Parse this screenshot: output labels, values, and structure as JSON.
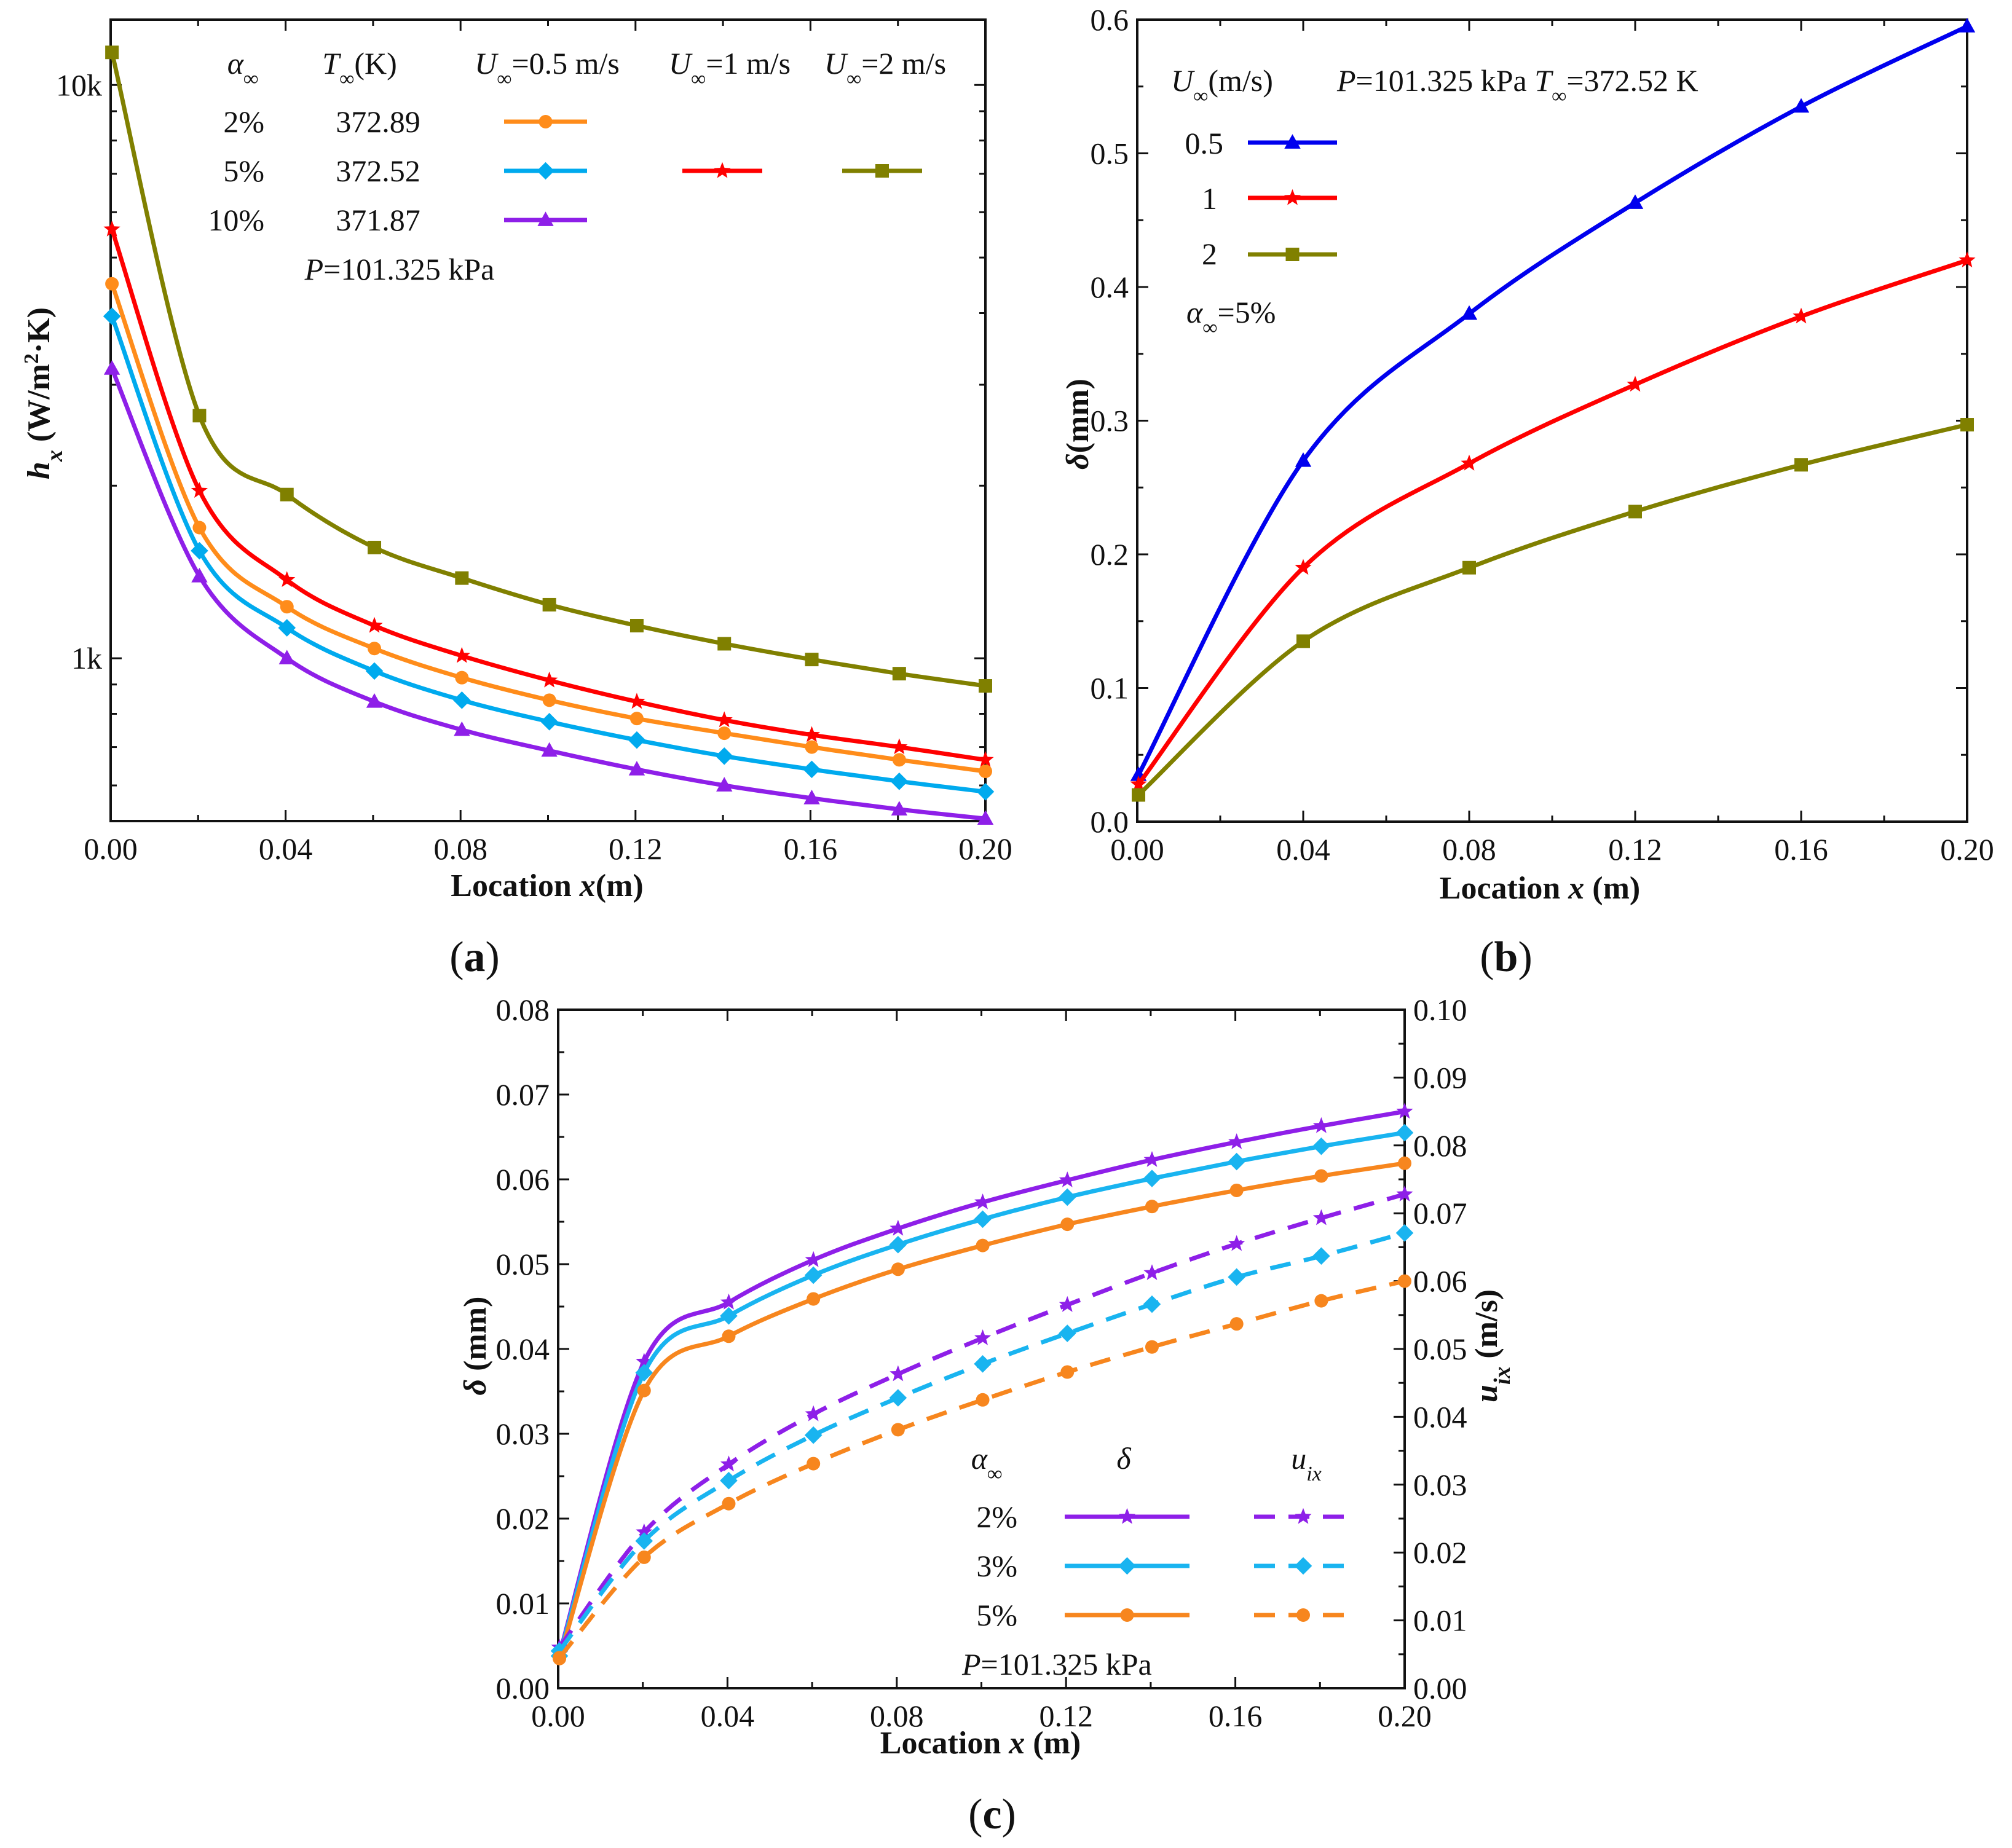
{
  "figure": {
    "panel_labels": {
      "a": "(a)",
      "b": "(b)",
      "c": "(c)"
    }
  },
  "chart_data": [
    {
      "id": "a",
      "type": "line",
      "xscale": "linear",
      "yscale": "log",
      "xlabel": "Location x(m)",
      "ylabel": "h_x (W/m²·K)",
      "xlim": [
        0.0,
        0.2
      ],
      "ylim": [
        520,
        13000
      ],
      "xticks": [
        0.0,
        0.04,
        0.08,
        0.12,
        0.16,
        0.2
      ],
      "xtick_labels": [
        "0.00",
        "0.04",
        "0.08",
        "0.12",
        "0.16",
        "0.20"
      ],
      "yticks": [
        1000,
        10000
      ],
      "ytick_labels": [
        "1k",
        "10k"
      ],
      "legend": {
        "header": [
          "α∞",
          "T∞(K)",
          "U∞=0.5 m/s",
          "U∞=1 m/s",
          "U∞=2 m/s"
        ],
        "rows": [
          {
            "alpha": "2%",
            "T": "372.89"
          },
          {
            "alpha": "5%",
            "T": "372.52"
          },
          {
            "alpha": "10%",
            "T": "371.87"
          }
        ],
        "note": "P=101.325 kPa"
      },
      "x": [
        0.0003,
        0.0203,
        0.0403,
        0.0603,
        0.0803,
        0.1003,
        0.1203,
        0.1403,
        0.1603,
        0.1803,
        0.2
      ],
      "series": [
        {
          "name": "U∞=2 m/s, α∞=5%",
          "color": "#808000",
          "marker": "square",
          "dash": "solid",
          "values": [
            11400,
            2650,
            1930,
            1560,
            1380,
            1240,
            1140,
            1060,
            995,
            940,
            895
          ]
        },
        {
          "name": "U∞=1 m/s, α∞=5%",
          "color": "#ff0000",
          "marker": "star",
          "dash": "solid",
          "values": [
            5600,
            1960,
            1370,
            1140,
            1010,
            915,
            840,
            780,
            735,
            700,
            665
          ]
        },
        {
          "name": "U∞=0.5 m/s, α∞=2%",
          "color": "#ff8c1a",
          "marker": "circle",
          "dash": "solid",
          "values": [
            4500,
            1690,
            1230,
            1040,
            925,
            845,
            785,
            740,
            700,
            665,
            635
          ]
        },
        {
          "name": "U∞=0.5 m/s, α∞=5%",
          "color": "#00aaee",
          "marker": "diamond",
          "dash": "solid",
          "values": [
            3950,
            1540,
            1130,
            950,
            845,
            775,
            720,
            675,
            640,
            610,
            585
          ]
        },
        {
          "name": "U∞=0.5 m/s, α∞=10%",
          "color": "#8e1fe8",
          "marker": "triangle",
          "dash": "solid",
          "values": [
            3200,
            1390,
            1000,
            840,
            750,
            690,
            640,
            600,
            570,
            545,
            525
          ]
        }
      ]
    },
    {
      "id": "b",
      "type": "line",
      "xscale": "linear",
      "yscale": "linear",
      "xlabel": "Location x (m)",
      "ylabel": "δ(mm)",
      "xlim": [
        0.0,
        0.2
      ],
      "ylim": [
        0.0,
        0.6
      ],
      "xticks": [
        0.0,
        0.04,
        0.08,
        0.12,
        0.16,
        0.2
      ],
      "xtick_labels": [
        "0.00",
        "0.04",
        "0.08",
        "0.12",
        "0.16",
        "0.20"
      ],
      "yticks": [
        0.0,
        0.1,
        0.2,
        0.3,
        0.4,
        0.5,
        0.6
      ],
      "ytick_labels": [
        "0.0",
        "0.1",
        "0.2",
        "0.3",
        "0.4",
        "0.5",
        "0.6"
      ],
      "legend": {
        "header": "U∞(m/s)",
        "conditions": "P=101.325 kPa  T∞=372.52 K",
        "entries": [
          "0.5",
          "1",
          "2"
        ],
        "note": "α∞=5%"
      },
      "x": [
        0.0003,
        0.04,
        0.08,
        0.12,
        0.16,
        0.2
      ],
      "series": [
        {
          "name": "0.5",
          "color": "#0000ee",
          "marker": "triangle",
          "dash": "solid",
          "values": [
            0.035,
            0.27,
            0.38,
            0.463,
            0.535,
            0.595
          ]
        },
        {
          "name": "1",
          "color": "#ff0000",
          "marker": "star",
          "dash": "solid",
          "values": [
            0.028,
            0.19,
            0.268,
            0.327,
            0.378,
            0.42
          ]
        },
        {
          "name": "2",
          "color": "#808000",
          "marker": "square",
          "dash": "solid",
          "values": [
            0.02,
            0.135,
            0.19,
            0.232,
            0.267,
            0.297
          ]
        }
      ]
    },
    {
      "id": "c",
      "type": "line",
      "xscale": "linear",
      "yscale": "linear",
      "xlabel": "Location x (m)",
      "ylabel": "δ (mm)",
      "y2label": "u_ix (m/s)",
      "xlim": [
        0.0,
        0.2
      ],
      "ylim": [
        0.0,
        0.08
      ],
      "y2lim": [
        0.0,
        0.1
      ],
      "xticks": [
        0.0,
        0.04,
        0.08,
        0.12,
        0.16,
        0.2
      ],
      "xtick_labels": [
        "0.00",
        "0.04",
        "0.08",
        "0.12",
        "0.16",
        "0.20"
      ],
      "yticks": [
        0.0,
        0.01,
        0.02,
        0.03,
        0.04,
        0.05,
        0.06,
        0.07,
        0.08
      ],
      "ytick_labels": [
        "0.00",
        "0.01",
        "0.02",
        "0.03",
        "0.04",
        "0.05",
        "0.06",
        "0.07",
        "0.08"
      ],
      "y2ticks": [
        0.0,
        0.01,
        0.02,
        0.03,
        0.04,
        0.05,
        0.06,
        0.07,
        0.08,
        0.09,
        0.1
      ],
      "y2tick_labels": [
        "0.00",
        "0.01",
        "0.02",
        "0.03",
        "0.04",
        "0.05",
        "0.06",
        "0.07",
        "0.08",
        "0.09",
        "0.10"
      ],
      "legend": {
        "header": [
          "α∞",
          "δ",
          "u_ix"
        ],
        "entries": [
          "2%",
          "3%",
          "5%"
        ],
        "note": "P=101.325 kPa"
      },
      "x": [
        0.0003,
        0.0203,
        0.0403,
        0.0603,
        0.0803,
        0.1003,
        0.1203,
        0.1403,
        0.1603,
        0.1803,
        0.2
      ],
      "series": [
        {
          "name": "δ 2%",
          "axis": "left",
          "color": "#8e1fe8",
          "marker": "star",
          "dash": "solid",
          "values": [
            0.004,
            0.0385,
            0.0455,
            0.0505,
            0.0542,
            0.0573,
            0.0599,
            0.0623,
            0.0644,
            0.0663,
            0.068
          ]
        },
        {
          "name": "δ 3%",
          "axis": "left",
          "color": "#19b4f0",
          "marker": "diamond",
          "dash": "solid",
          "values": [
            0.0038,
            0.0372,
            0.0439,
            0.0487,
            0.0523,
            0.0553,
            0.0579,
            0.0601,
            0.0621,
            0.0639,
            0.0655
          ]
        },
        {
          "name": "δ 5%",
          "axis": "left",
          "color": "#f7861e",
          "marker": "circle",
          "dash": "solid",
          "values": [
            0.0035,
            0.0351,
            0.0415,
            0.0459,
            0.0494,
            0.0522,
            0.0547,
            0.0568,
            0.0587,
            0.0604,
            0.0619
          ]
        },
        {
          "name": "u_ix 2%",
          "axis": "right",
          "color": "#8e1fe8",
          "marker": "star",
          "dash": "dashed",
          "values": [
            0.006,
            0.023,
            0.033,
            0.0404,
            0.0463,
            0.0516,
            0.0565,
            0.0612,
            0.0655,
            0.0693,
            0.0728
          ]
        },
        {
          "name": "u_ix 3%",
          "axis": "right",
          "color": "#19b4f0",
          "marker": "diamond",
          "dash": "dashed",
          "values": [
            0.0055,
            0.0217,
            0.0306,
            0.0373,
            0.0428,
            0.0478,
            0.0523,
            0.0566,
            0.0606,
            0.0637,
            0.0671
          ]
        },
        {
          "name": "u_ix 5%",
          "axis": "right",
          "color": "#f7861e",
          "marker": "circle",
          "dash": "dashed",
          "values": [
            0.0045,
            0.0193,
            0.0272,
            0.0331,
            0.0381,
            0.0425,
            0.0466,
            0.0503,
            0.0537,
            0.0571,
            0.06
          ]
        }
      ]
    }
  ]
}
